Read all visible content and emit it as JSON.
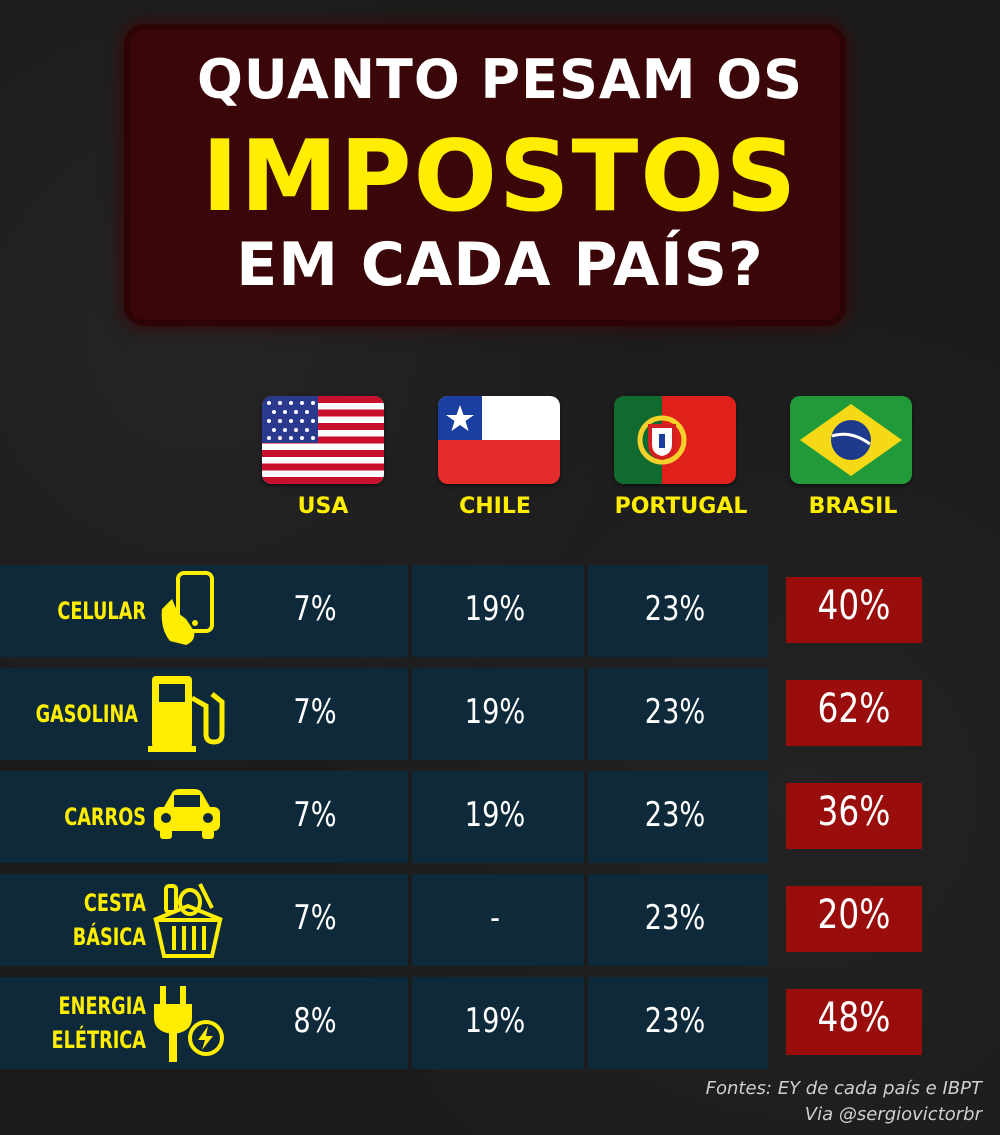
{
  "title": {
    "line1": "QUANTO PESAM OS",
    "line2": "IMPOSTOS",
    "line3": "EM CADA PAÍS?"
  },
  "colors": {
    "accent_yellow": "#ffee00",
    "row_blue": "#0e2a3a",
    "brasil_red": "#9a0d0d",
    "title_bg": "#3a0608"
  },
  "countries": [
    {
      "name": "USA",
      "flag": "usa-flag-icon"
    },
    {
      "name": "CHILE",
      "flag": "chile-flag-icon"
    },
    {
      "name": "PORTUGAL",
      "flag": "portugal-flag-icon"
    },
    {
      "name": "BRASIL",
      "flag": "brasil-flag-icon"
    }
  ],
  "rows": [
    {
      "label": [
        "CELULAR"
      ],
      "icon": "phone-hand-icon",
      "values": [
        "7%",
        "19%",
        "23%",
        "40%"
      ]
    },
    {
      "label": [
        "GASOLINA"
      ],
      "icon": "fuel-pump-icon",
      "values": [
        "7%",
        "19%",
        "23%",
        "62%"
      ]
    },
    {
      "label": [
        "CARROS"
      ],
      "icon": "car-icon",
      "values": [
        "7%",
        "19%",
        "23%",
        "36%"
      ]
    },
    {
      "label": [
        "CESTA",
        "BÁSICA"
      ],
      "icon": "grocery-basket-icon",
      "values": [
        "7%",
        "-",
        "23%",
        "20%"
      ]
    },
    {
      "label": [
        "ENERGIA",
        "ELÉTRICA"
      ],
      "icon": "electric-plug-icon",
      "values": [
        "8%",
        "19%",
        "23%",
        "48%"
      ]
    }
  ],
  "source": {
    "line1": "Fontes: EY de cada país e IBPT",
    "line2": "Via @sergiovictorbr"
  },
  "chart_data": {
    "type": "table",
    "title": "QUANTO PESAM OS IMPOSTOS EM CADA PAÍS?",
    "columns": [
      "USA",
      "CHILE",
      "PORTUGAL",
      "BRASIL"
    ],
    "categories": [
      "CELULAR",
      "GASOLINA",
      "CARROS",
      "CESTA BÁSICA",
      "ENERGIA ELÉTRICA"
    ],
    "series": [
      {
        "name": "USA",
        "values": [
          7,
          7,
          7,
          7,
          8
        ]
      },
      {
        "name": "CHILE",
        "values": [
          19,
          19,
          19,
          null,
          19
        ]
      },
      {
        "name": "PORTUGAL",
        "values": [
          23,
          23,
          23,
          23,
          23
        ]
      },
      {
        "name": "BRASIL",
        "values": [
          40,
          62,
          36,
          20,
          48
        ]
      }
    ],
    "unit": "%"
  }
}
